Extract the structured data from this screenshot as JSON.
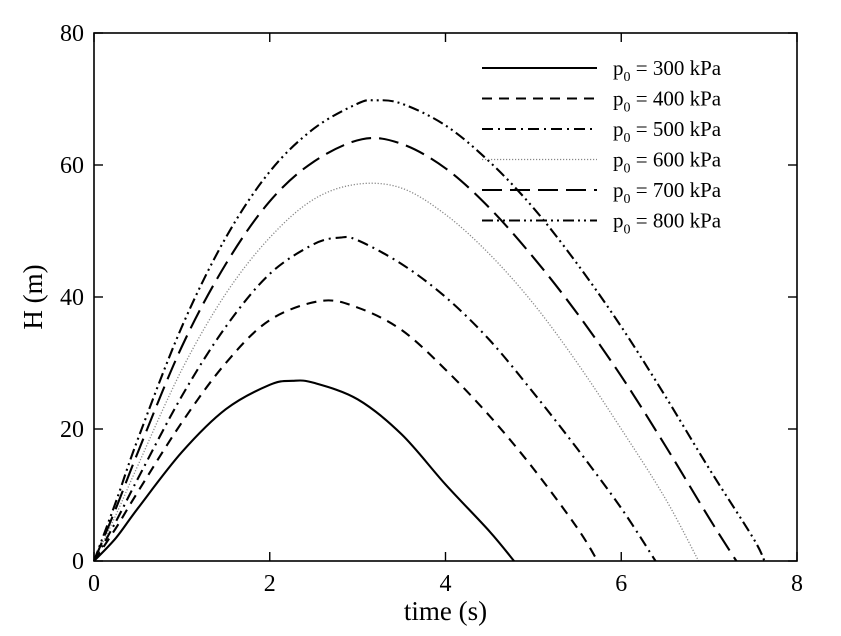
{
  "chart_data": {
    "type": "line",
    "title": "",
    "xlabel": "time (s)",
    "ylabel": "H (m)",
    "xlim": [
      0,
      8
    ],
    "ylim": [
      0,
      80
    ],
    "x_ticks": [
      0,
      2,
      4,
      6,
      8
    ],
    "y_ticks": [
      0,
      20,
      40,
      60,
      80
    ],
    "grid": false,
    "legend_position": "top-right",
    "series": [
      {
        "name": "p0 = 300 kPa",
        "legend_prefix": "p",
        "legend_sub": "0",
        "legend_suffix": " = 300 kPa",
        "dash": "solid",
        "color": "#000000",
        "x": [
          0,
          0.25,
          0.5,
          1.0,
          1.5,
          2.0,
          2.26,
          2.5,
          3.0,
          3.5,
          4.0,
          4.5,
          4.78
        ],
        "y": [
          0,
          3.5,
          8.0,
          16.5,
          23.0,
          26.7,
          27.3,
          27.0,
          24.5,
          19.2,
          11.6,
          4.5,
          0
        ]
      },
      {
        "name": "p0 = 400 kPa",
        "legend_prefix": "p",
        "legend_sub": "0",
        "legend_suffix": " = 400 kPa",
        "dash": "dashed",
        "color": "#000000",
        "x": [
          0,
          0.25,
          0.5,
          1.0,
          1.5,
          2.0,
          2.58,
          3.0,
          3.5,
          4.0,
          4.5,
          5.0,
          5.5,
          5.73
        ],
        "y": [
          0,
          5.0,
          10.5,
          21.0,
          30.0,
          36.5,
          39.4,
          38.4,
          35.0,
          29.0,
          22.0,
          14.0,
          5.0,
          0
        ]
      },
      {
        "name": "p0 = 500 kPa",
        "legend_prefix": "p",
        "legend_sub": "0",
        "legend_suffix": " = 500 kPa",
        "dash": "dashdot",
        "color": "#000000",
        "x": [
          0,
          0.25,
          0.5,
          1.0,
          1.5,
          2.0,
          2.5,
          2.8,
          3.0,
          3.5,
          4.0,
          4.5,
          5.0,
          5.5,
          6.0,
          6.39
        ],
        "y": [
          0,
          6.0,
          12.5,
          25.0,
          35.5,
          43.5,
          48.0,
          49.0,
          48.6,
          45.0,
          40.0,
          33.5,
          25.5,
          17.0,
          8.0,
          0
        ]
      },
      {
        "name": "p0 = 600 kPa",
        "legend_prefix": "p",
        "legend_sub": "0",
        "legend_suffix": " = 600 kPa",
        "dash": "dotted",
        "color": "#888888",
        "x": [
          0,
          0.25,
          0.5,
          1.0,
          1.5,
          2.0,
          2.5,
          3.0,
          3.5,
          4.0,
          4.5,
          5.0,
          5.5,
          6.0,
          6.5,
          6.88
        ],
        "y": [
          0,
          7.0,
          14.5,
          29.0,
          40.5,
          49.0,
          54.8,
          57.1,
          56.5,
          52.5,
          46.5,
          39.0,
          30.0,
          20.0,
          9.5,
          0
        ]
      },
      {
        "name": "p0 = 700 kPa",
        "legend_prefix": "p",
        "legend_sub": "0",
        "legend_suffix": " = 700 kPa",
        "dash": "longdash",
        "color": "#000000",
        "x": [
          0,
          0.25,
          0.5,
          1.0,
          1.5,
          2.0,
          2.5,
          3.05,
          3.5,
          4.0,
          4.5,
          5.0,
          5.5,
          6.0,
          6.5,
          7.0,
          7.31
        ],
        "y": [
          0,
          8.0,
          16.5,
          32.5,
          45.0,
          54.5,
          60.5,
          63.9,
          63.2,
          59.5,
          53.5,
          46.0,
          37.5,
          28.0,
          17.5,
          6.5,
          0
        ]
      },
      {
        "name": "p0 = 800 kPa",
        "legend_prefix": "p",
        "legend_sub": "0",
        "legend_suffix": " = 800 kPa",
        "dash": "dashdotdot",
        "color": "#000000",
        "x": [
          0,
          0.25,
          0.5,
          1.0,
          1.5,
          2.0,
          2.5,
          3.0,
          3.2,
          3.5,
          4.0,
          4.5,
          5.0,
          5.5,
          6.0,
          6.5,
          7.0,
          7.5,
          7.63
        ],
        "y": [
          0,
          9.0,
          18.5,
          35.5,
          49.0,
          59.0,
          65.5,
          69.3,
          69.8,
          69.3,
          66.0,
          60.5,
          53.5,
          45.0,
          35.5,
          25.0,
          14.0,
          3.5,
          0
        ]
      }
    ]
  }
}
